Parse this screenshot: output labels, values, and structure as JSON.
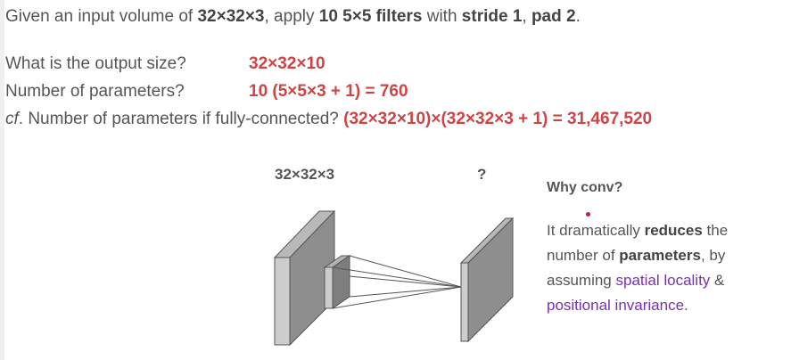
{
  "given": {
    "prefix": "Given an input volume of ",
    "vol": "32×32×3",
    "mid1": ", apply ",
    "filters": "10 5×5 filters",
    "mid2": " with ",
    "stride": "stride 1",
    "sep": ", ",
    "pad": "pad 2",
    "end": "."
  },
  "q1": {
    "label": "What is the output size?",
    "answer": "32×32×10"
  },
  "q2": {
    "label": "Number of parameters?",
    "answer": "10 (5×5×3 + 1) = 760"
  },
  "q3": {
    "cf": "cf",
    "label": ". Number of parameters if fully-connected? ",
    "answer": "(32×32×10)×(32×32×3 + 1) = 31,467,520"
  },
  "diagram": {
    "input_label": "32×32×3",
    "output_label": "?"
  },
  "why": {
    "title": "Why conv?",
    "t1": "It dramatically ",
    "t2": "reduces",
    "t3": " the number of ",
    "t4": "parameters",
    "t5": ", by assuming ",
    "t6": "spatial locality",
    "t7": " & ",
    "t8": "positional invariance",
    "t9": "."
  },
  "colors": {
    "answer": "#cc4444",
    "highlight": "#7a2fb0",
    "annotation_dot": "#c0185f"
  }
}
